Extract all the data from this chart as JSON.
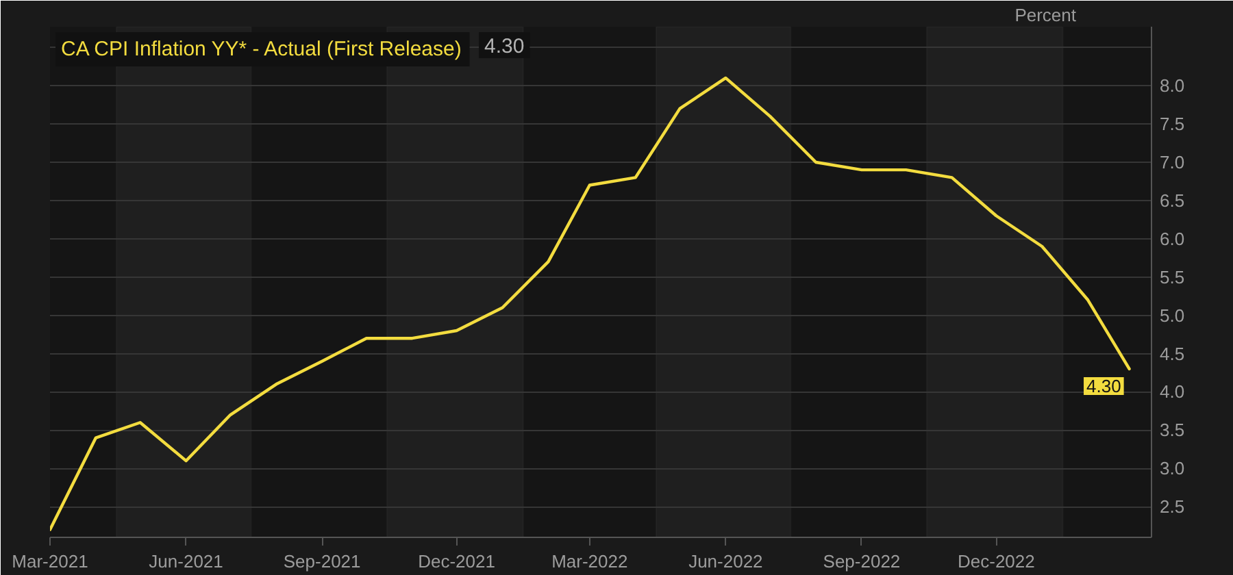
{
  "chart_data": {
    "type": "line",
    "ylabel": "Percent",
    "legend": "top left",
    "annotations": [
      "4.30"
    ],
    "grid": "y",
    "x": [
      "2021-03",
      "2021-04",
      "2021-05",
      "2021-06",
      "2021-07",
      "2021-08",
      "2021-09",
      "2021-10",
      "2021-11",
      "2021-12",
      "2022-01",
      "2022-02",
      "2022-03",
      "2022-04",
      "2022-05",
      "2022-06",
      "2022-07",
      "2022-08",
      "2022-09",
      "2022-10",
      "2022-11",
      "2022-12",
      "2023-01",
      "2023-02",
      "2023-03"
    ],
    "series": [
      {
        "name": "CA CPI Inflation YY* - Actual (First Release)",
        "color": "#f3dc3f",
        "values": [
          2.2,
          3.4,
          3.6,
          3.1,
          3.7,
          4.1,
          4.4,
          4.7,
          4.7,
          4.8,
          5.1,
          5.7,
          6.7,
          6.8,
          7.7,
          8.1,
          7.6,
          7.0,
          6.9,
          6.9,
          6.8,
          6.3,
          5.9,
          5.2,
          4.3
        ],
        "value_labels": [
          null,
          null,
          null,
          null,
          null,
          null,
          null,
          null,
          null,
          null,
          null,
          null,
          null,
          null,
          null,
          null,
          null,
          null,
          null,
          null,
          null,
          null,
          null,
          null,
          "4.30"
        ]
      }
    ],
    "xlim": [
      "2021-03-01",
      "2023-03-16"
    ],
    "xticks": [
      {
        "value": "2021-03",
        "label": "Mar-2021"
      },
      {
        "value": "2021-06",
        "label": "Jun-2021"
      },
      {
        "value": "2021-09",
        "label": "Sep-2021"
      },
      {
        "value": "2021-12",
        "label": "Dec-2021"
      },
      {
        "value": "2022-03",
        "label": "Mar-2022"
      },
      {
        "value": "2022-06",
        "label": "Jun-2022"
      },
      {
        "value": "2022-09",
        "label": "Sep-2022"
      },
      {
        "value": "2022-12",
        "label": "Dec-2022"
      }
    ],
    "ylim": [
      2.1,
      8.77
    ],
    "yticks": [
      2.5,
      {
        "value": 3,
        "label": "3.0"
      },
      3.5,
      {
        "value": 4,
        "label": "4.0"
      },
      4.5,
      {
        "value": 5,
        "label": "5.0"
      },
      5.5,
      {
        "value": 6,
        "label": "6.0"
      },
      6.5,
      {
        "value": 7,
        "label": "7.0"
      },
      7.5,
      {
        "value": 8,
        "label": "8.0"
      },
      {
        "value": 8.5,
        "label": null
      }
    ],
    "bands": [
      {
        "axis": "x",
        "from": "2021-04-15",
        "to": "2021-07-15",
        "color": "#1f1f1f"
      },
      {
        "axis": "x",
        "from": "2021-10-15",
        "to": "2022-01-15",
        "color": "#1f1f1f"
      },
      {
        "axis": "x",
        "from": "2022-04-15",
        "to": "2022-07-15",
        "color": "#1f1f1f"
      },
      {
        "axis": "x",
        "from": "2022-10-15",
        "to": "2023-01-15",
        "color": "#1f1f1f"
      }
    ]
  }
}
